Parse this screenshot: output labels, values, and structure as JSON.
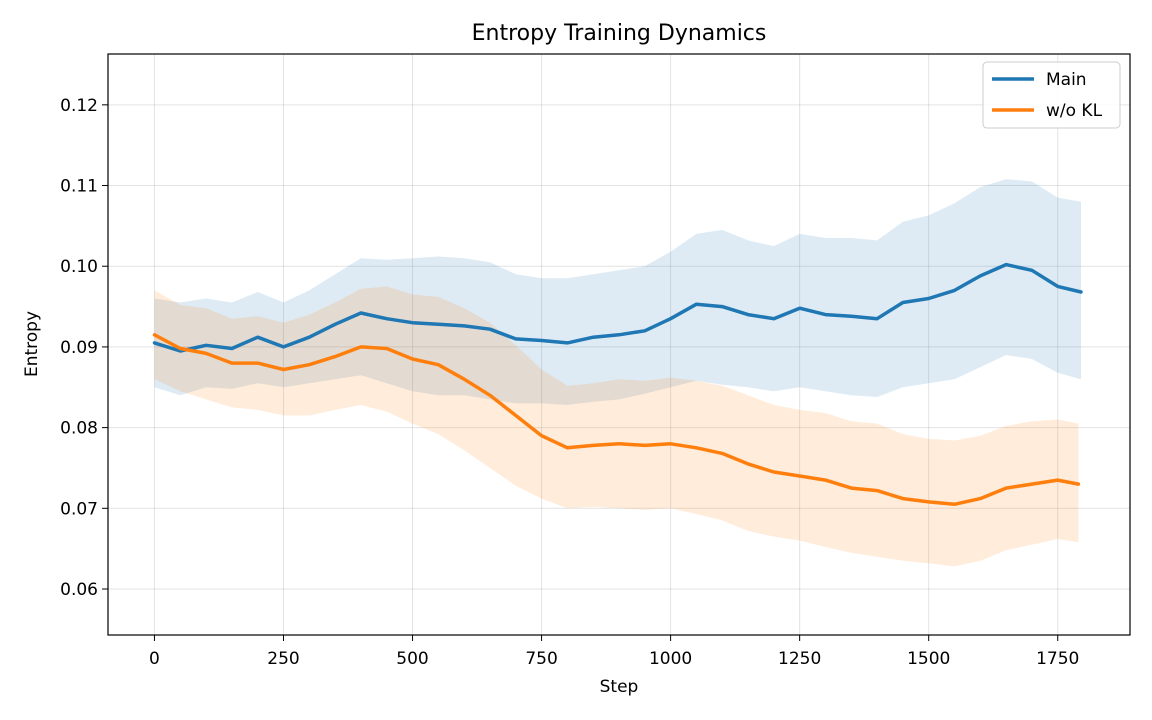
{
  "chart_data": {
    "type": "line",
    "title": "Entropy Training Dynamics",
    "xlabel": "Step",
    "ylabel": "Entropy",
    "xlim": [
      -90,
      1890
    ],
    "ylim": [
      0.0543,
      0.1263
    ],
    "xticks": [
      0,
      250,
      500,
      750,
      1000,
      1250,
      1500,
      1750
    ],
    "yticks": [
      0.06,
      0.07,
      0.08,
      0.09,
      0.1,
      0.11,
      0.12
    ],
    "ytick_labels": [
      "0.06",
      "0.07",
      "0.08",
      "0.09",
      "0.10",
      "0.11",
      "0.12"
    ],
    "grid": true,
    "legend_position": "top-right",
    "series": [
      {
        "name": "Main",
        "color": "#1f77b4",
        "shaded_band": true,
        "x": [
          0,
          50,
          100,
          150,
          200,
          250,
          300,
          350,
          400,
          450,
          500,
          550,
          600,
          650,
          700,
          750,
          800,
          850,
          900,
          950,
          1000,
          1050,
          1100,
          1150,
          1200,
          1250,
          1300,
          1350,
          1400,
          1450,
          1500,
          1550,
          1600,
          1650,
          1700,
          1750,
          1795
        ],
        "y": [
          0.0905,
          0.0895,
          0.0902,
          0.0898,
          0.0912,
          0.09,
          0.0912,
          0.0928,
          0.0942,
          0.0935,
          0.093,
          0.0928,
          0.0926,
          0.0922,
          0.091,
          0.0908,
          0.0905,
          0.0912,
          0.0915,
          0.092,
          0.0935,
          0.0953,
          0.095,
          0.094,
          0.0935,
          0.0948,
          0.094,
          0.0938,
          0.0935,
          0.0955,
          0.096,
          0.097,
          0.0988,
          0.1002,
          0.0995,
          0.0975,
          0.0968
        ],
        "band_lower": [
          0.085,
          0.084,
          0.085,
          0.0848,
          0.0855,
          0.085,
          0.0855,
          0.086,
          0.0865,
          0.0855,
          0.0845,
          0.084,
          0.084,
          0.0835,
          0.083,
          0.083,
          0.0828,
          0.0832,
          0.0835,
          0.0842,
          0.085,
          0.0858,
          0.0853,
          0.085,
          0.0845,
          0.085,
          0.0845,
          0.084,
          0.0838,
          0.085,
          0.0855,
          0.086,
          0.0875,
          0.089,
          0.0885,
          0.0868,
          0.086
        ],
        "band_upper": [
          0.096,
          0.0955,
          0.096,
          0.0955,
          0.0968,
          0.0955,
          0.097,
          0.099,
          0.101,
          0.1008,
          0.101,
          0.1012,
          0.101,
          0.1005,
          0.099,
          0.0985,
          0.0985,
          0.099,
          0.0995,
          0.1,
          0.1018,
          0.104,
          0.1045,
          0.1032,
          0.1025,
          0.104,
          0.1035,
          0.1035,
          0.1032,
          0.1055,
          0.1063,
          0.1078,
          0.1098,
          0.1108,
          0.1105,
          0.1085,
          0.108
        ]
      },
      {
        "name": "w/o KL",
        "color": "#ff7f0e",
        "shaded_band": true,
        "x": [
          0,
          50,
          100,
          150,
          200,
          250,
          300,
          350,
          400,
          450,
          500,
          550,
          600,
          650,
          700,
          750,
          800,
          850,
          900,
          950,
          1000,
          1050,
          1100,
          1150,
          1200,
          1250,
          1300,
          1350,
          1400,
          1450,
          1500,
          1550,
          1600,
          1650,
          1700,
          1750,
          1790
        ],
        "y": [
          0.0915,
          0.0898,
          0.0892,
          0.088,
          0.088,
          0.0872,
          0.0878,
          0.0888,
          0.09,
          0.0898,
          0.0885,
          0.0878,
          0.086,
          0.084,
          0.0815,
          0.079,
          0.0775,
          0.0778,
          0.078,
          0.0778,
          0.078,
          0.0775,
          0.0768,
          0.0755,
          0.0745,
          0.074,
          0.0735,
          0.0725,
          0.0722,
          0.0712,
          0.0708,
          0.0705,
          0.0712,
          0.0725,
          0.073,
          0.0735,
          0.073
        ],
        "band_lower": [
          0.086,
          0.0845,
          0.0835,
          0.0825,
          0.0822,
          0.0815,
          0.0815,
          0.0822,
          0.0828,
          0.082,
          0.0805,
          0.0792,
          0.0772,
          0.075,
          0.0728,
          0.0712,
          0.07,
          0.0702,
          0.07,
          0.0698,
          0.07,
          0.0693,
          0.0685,
          0.0672,
          0.0665,
          0.066,
          0.0652,
          0.0645,
          0.064,
          0.0635,
          0.0632,
          0.0628,
          0.0635,
          0.0648,
          0.0655,
          0.0662,
          0.0658
        ],
        "band_upper": [
          0.097,
          0.0952,
          0.0948,
          0.0935,
          0.0938,
          0.093,
          0.094,
          0.0955,
          0.0972,
          0.0975,
          0.0965,
          0.0962,
          0.0948,
          0.093,
          0.0902,
          0.0872,
          0.0852,
          0.0855,
          0.086,
          0.0858,
          0.0862,
          0.0858,
          0.0852,
          0.084,
          0.0828,
          0.0822,
          0.0818,
          0.0808,
          0.0805,
          0.0792,
          0.0786,
          0.0784,
          0.079,
          0.0802,
          0.0808,
          0.081,
          0.0805
        ]
      }
    ]
  }
}
